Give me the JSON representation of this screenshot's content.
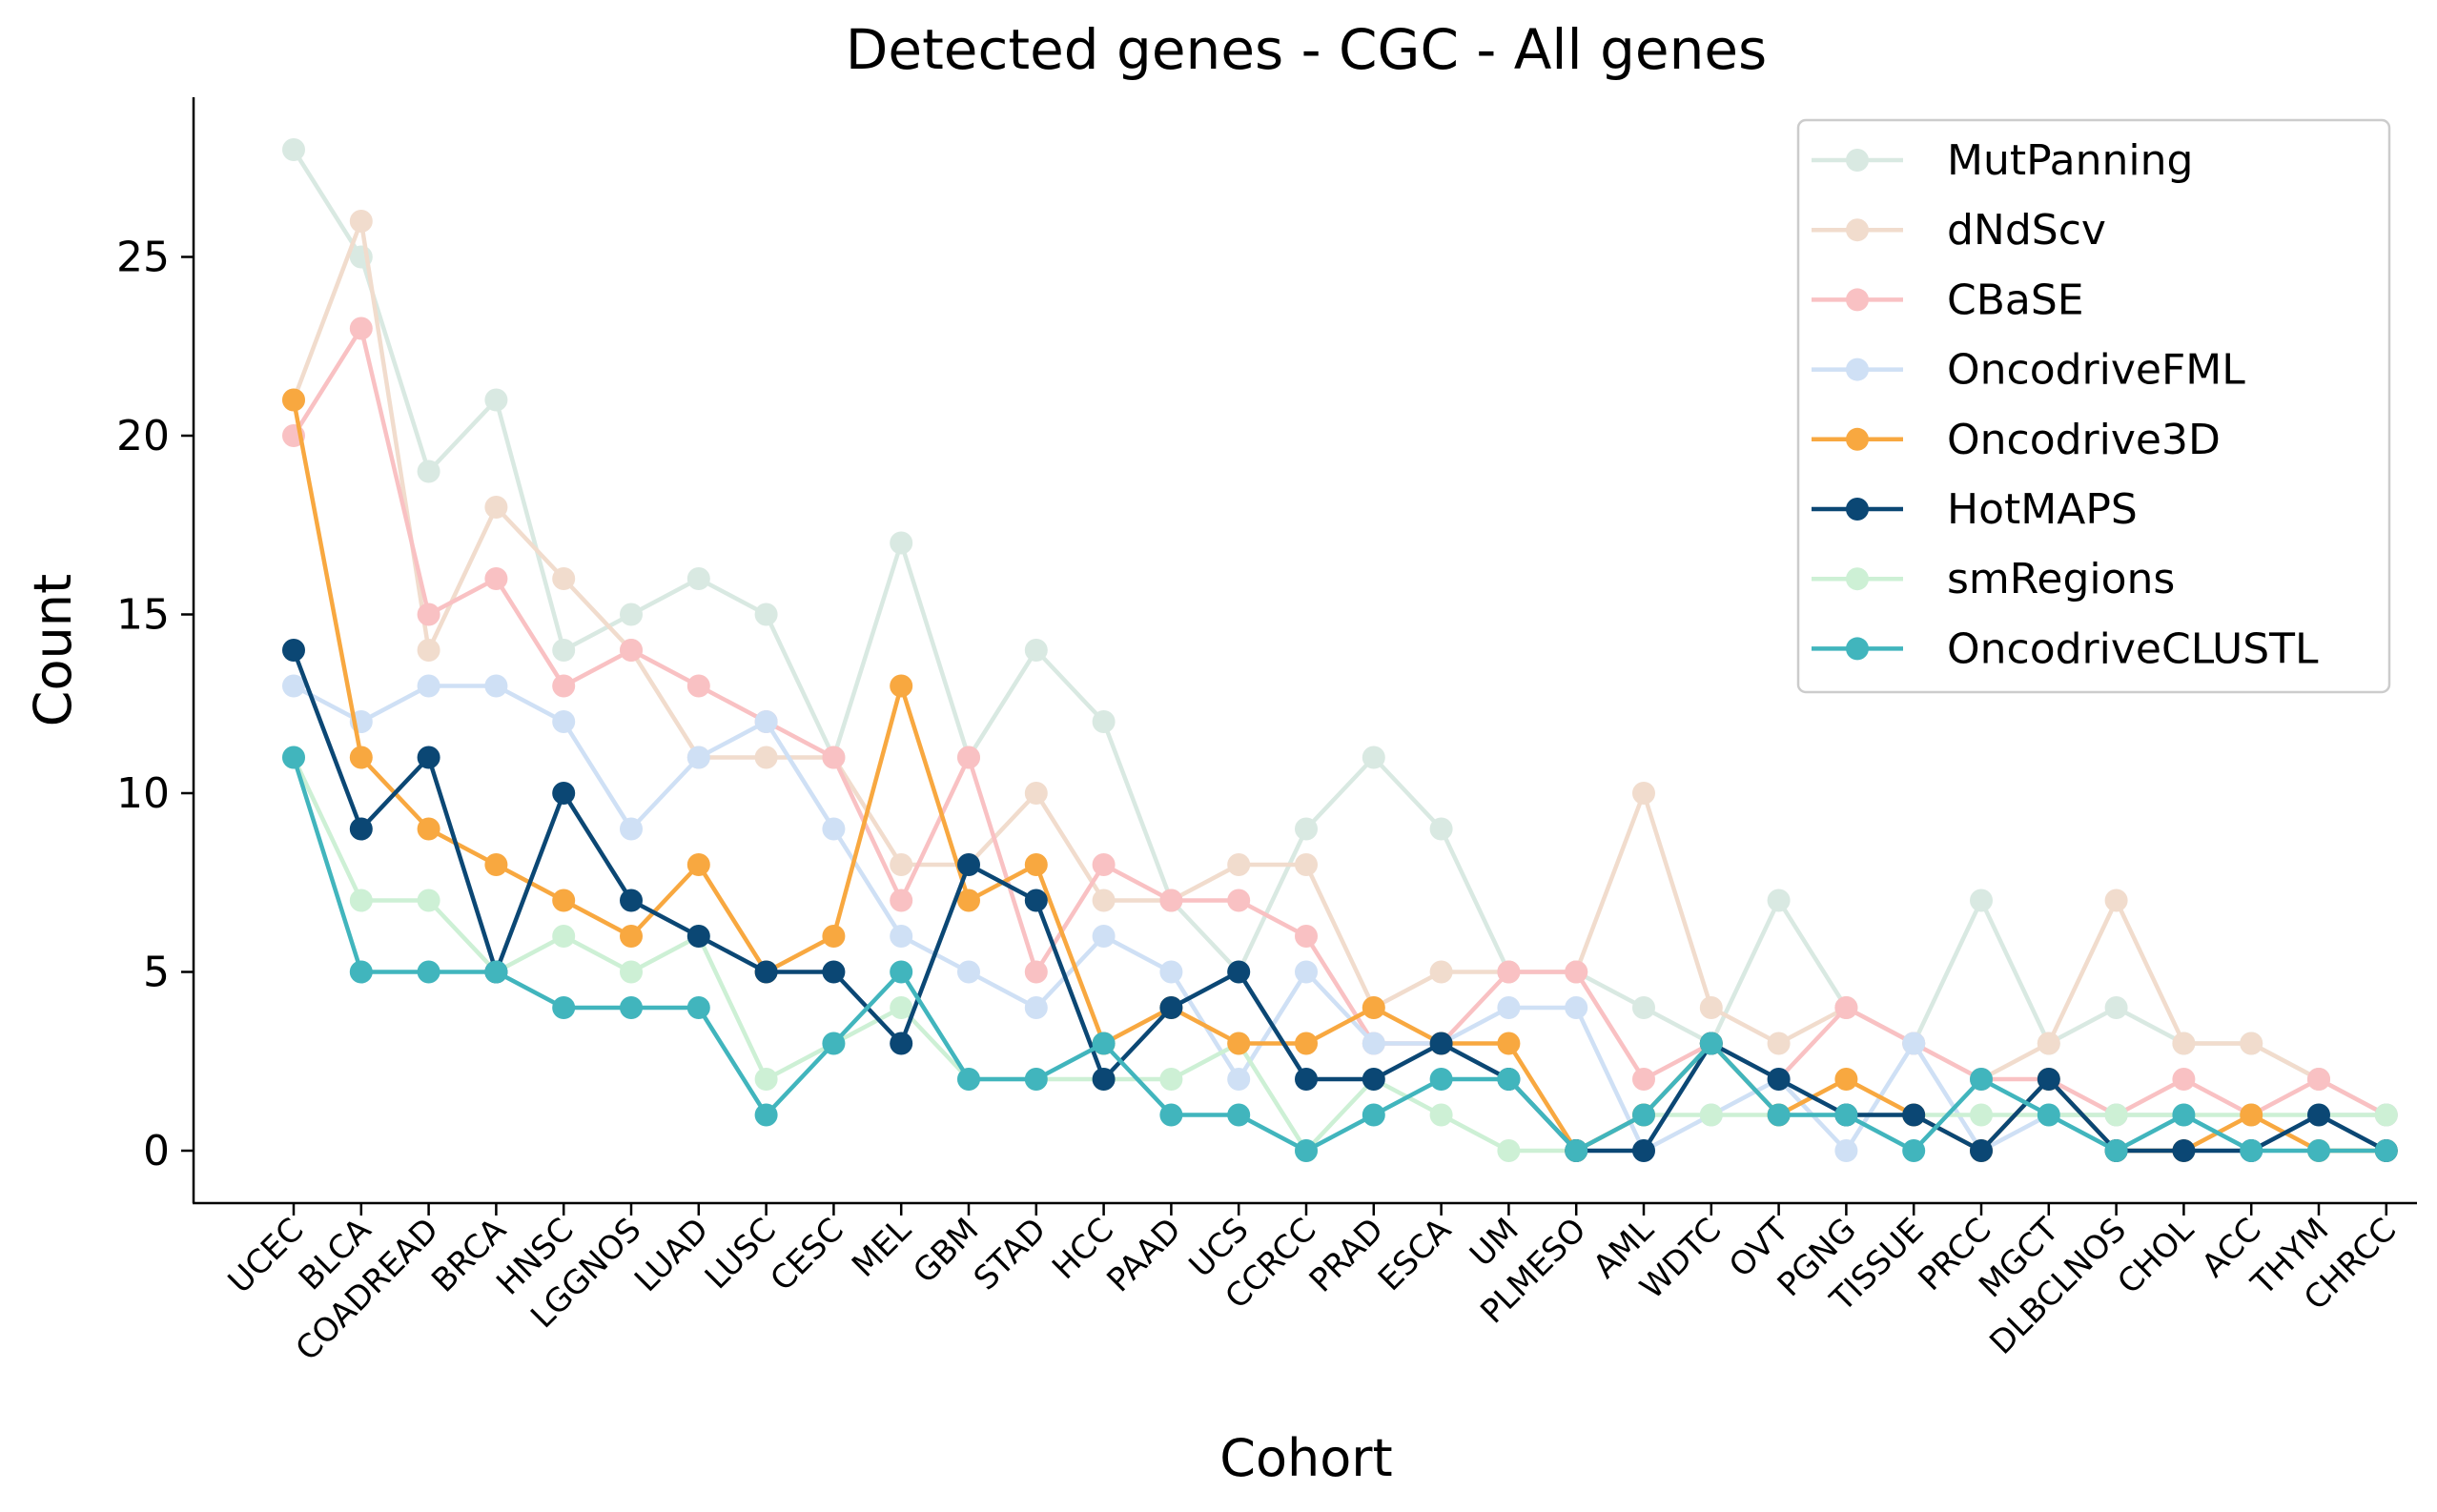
{
  "chart_data": {
    "type": "line",
    "title": "Detected genes - CGC - All genes",
    "xlabel": "Cohort",
    "ylabel": "Count",
    "ylim": [
      -1.4,
      29.7
    ],
    "yticks": [
      0,
      5,
      10,
      15,
      20,
      25
    ],
    "legend_position": "top-right",
    "grid": false,
    "categories": [
      "UCEC",
      "BLCA",
      "COADREAD",
      "BRCA",
      "HNSC",
      "LGGNOS",
      "LUAD",
      "LUSC",
      "CESC",
      "MEL",
      "GBM",
      "STAD",
      "HCC",
      "PAAD",
      "UCS",
      "CCRCC",
      "PRAD",
      "ESCA",
      "UM",
      "PLMESO",
      "AML",
      "WDTC",
      "OVT",
      "PGNG",
      "TISSUE",
      "PRCC",
      "MGCT",
      "DLBCLNOS",
      "CHOL",
      "ACC",
      "THYM",
      "CHRCC"
    ],
    "series": [
      {
        "name": "MutPanning",
        "color": "#d9e9e2",
        "faded": true,
        "values": [
          28,
          25,
          19,
          21,
          14,
          15,
          16,
          15,
          11,
          17,
          11,
          14,
          12,
          7,
          5,
          9,
          11,
          9,
          5,
          5,
          4,
          3,
          7,
          4,
          3,
          7,
          3,
          4,
          3,
          3,
          2,
          1
        ]
      },
      {
        "name": "dNdScv",
        "color": "#f1dccd",
        "faded": true,
        "values": [
          21,
          26,
          14,
          18,
          16,
          14,
          11,
          11,
          11,
          8,
          8,
          10,
          7,
          7,
          8,
          8,
          4,
          5,
          5,
          5,
          10,
          4,
          3,
          4,
          3,
          2,
          3,
          7,
          3,
          3,
          2,
          1
        ]
      },
      {
        "name": "CBaSE",
        "color": "#f9c1c3",
        "faded": true,
        "values": [
          20,
          23,
          15,
          16,
          13,
          14,
          13,
          12,
          11,
          7,
          11,
          5,
          8,
          7,
          7,
          6,
          3,
          3,
          5,
          5,
          2,
          3,
          2,
          4,
          3,
          2,
          2,
          1,
          2,
          1,
          2,
          1
        ]
      },
      {
        "name": "OncodriveFML",
        "color": "#cfe0f5",
        "faded": true,
        "values": [
          13,
          12,
          13,
          13,
          12,
          9,
          11,
          12,
          9,
          6,
          5,
          4,
          6,
          5,
          2,
          5,
          3,
          3,
          4,
          4,
          0,
          1,
          2,
          0,
          3,
          0,
          1,
          1,
          1,
          0,
          1,
          1
        ]
      },
      {
        "name": "Oncodrive3D",
        "color": "#f8a840",
        "faded": false,
        "values": [
          21,
          11,
          9,
          8,
          7,
          6,
          8,
          5,
          6,
          13,
          7,
          8,
          3,
          4,
          3,
          3,
          4,
          3,
          3,
          0,
          1,
          3,
          1,
          2,
          1,
          0,
          2,
          0,
          0,
          1,
          0,
          0
        ]
      },
      {
        "name": "HotMAPS",
        "color": "#0b4774",
        "faded": false,
        "values": [
          14,
          9,
          11,
          5,
          10,
          7,
          6,
          5,
          5,
          3,
          8,
          7,
          2,
          4,
          5,
          2,
          2,
          3,
          2,
          0,
          0,
          3,
          2,
          1,
          1,
          0,
          2,
          0,
          0,
          0,
          1,
          0
        ]
      },
      {
        "name": "smRegions",
        "color": "#cdf0d5",
        "faded": true,
        "values": [
          11,
          7,
          7,
          5,
          6,
          5,
          6,
          2,
          3,
          4,
          2,
          2,
          2,
          2,
          3,
          0,
          2,
          1,
          0,
          0,
          1,
          1,
          1,
          1,
          1,
          1,
          1,
          1,
          1,
          1,
          1,
          1
        ]
      },
      {
        "name": "OncodriveCLUSTL",
        "color": "#41b5bd",
        "faded": false,
        "values": [
          11,
          5,
          5,
          5,
          4,
          4,
          4,
          1,
          3,
          5,
          2,
          2,
          3,
          1,
          1,
          0,
          1,
          2,
          2,
          0,
          1,
          3,
          1,
          1,
          0,
          2,
          1,
          0,
          1,
          0,
          0,
          0
        ]
      }
    ]
  }
}
